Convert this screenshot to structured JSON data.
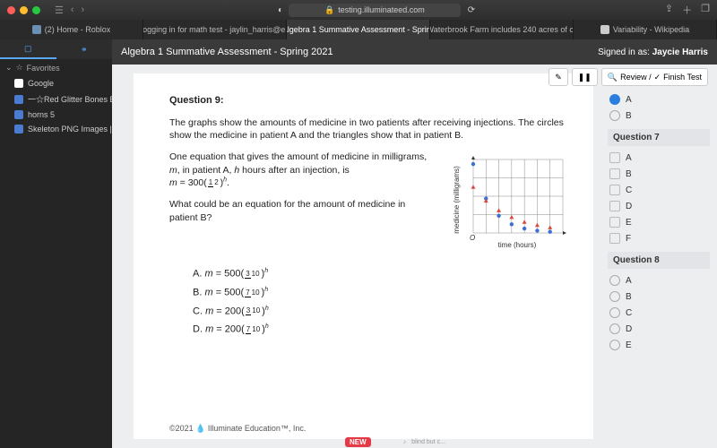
{
  "browser": {
    "url_host": "testing.illuminateed.com",
    "tabs": [
      {
        "label": "(2) Home - Roblox",
        "color": "#6b8fb3"
      },
      {
        "label": "logging in for math test - jaylin_harris@e...",
        "color": "#d44638"
      },
      {
        "label": "Algebra 1 Summative Assessment - Sprin...",
        "color": "#4aa3df",
        "active": true
      },
      {
        "label": "Waterbrook Farm includes 240 acres of c...",
        "color": "#ffffff"
      },
      {
        "label": "Variability - Wikipedia",
        "color": "#cccccc"
      }
    ]
  },
  "sidebar": {
    "favorites_label": "Favorites",
    "items": [
      {
        "label": "Google",
        "color": "#ffffff"
      },
      {
        "label": "一☆Red Glitter Bones Bl...",
        "color": "#4a7bd0"
      },
      {
        "label": "horns 5",
        "color": "#4a7bd0"
      },
      {
        "label": "Skeleton PNG Images | V...",
        "color": "#4a7bd0"
      }
    ]
  },
  "app": {
    "title": "Algebra 1 Summative Assessment - Spring 2021",
    "signed_label": "Signed in as:",
    "user": "Jaycie Harris",
    "toolbar": {
      "review": "Review /",
      "finish": "Finish Test"
    }
  },
  "question": {
    "number_label": "Question 9:",
    "p1": "The graphs show the amounts of medicine in two patients after receiving injections. The circles show the medicine in patient A and the triangles show that in patient B.",
    "p2a": "One equation that gives the amount of medicine in milligrams, ",
    "p2b": ", in patient A, ",
    "p2c": " hours after an injection, is",
    "eqA_pre": "m = 300(",
    "eqA_num": "1",
    "eqA_den": "2",
    "eqA_post": ")",
    "p3": "What could be an equation for the amount of medicine in patient B?",
    "xlabel": "time (hours)",
    "ylabel": "medicine (milligrams)",
    "options": [
      {
        "tag": "A.",
        "pre": "m = 500(",
        "num": "3",
        "den": "10",
        "post": ")"
      },
      {
        "tag": "B.",
        "pre": "m = 500(",
        "num": "7",
        "den": "10",
        "post": ")"
      },
      {
        "tag": "C.",
        "pre": "m = 200(",
        "num": "3",
        "den": "10",
        "post": ")"
      },
      {
        "tag": "D.",
        "pre": "m = 200(",
        "num": "7",
        "den": "10",
        "post": ")"
      }
    ],
    "chart": {
      "circles": [
        [
          0,
          300
        ],
        [
          1,
          150
        ],
        [
          2,
          75
        ],
        [
          3,
          38
        ],
        [
          4,
          19
        ],
        [
          5,
          10
        ],
        [
          6,
          5
        ]
      ],
      "triangles": [
        [
          0,
          200
        ],
        [
          1,
          140
        ],
        [
          2,
          98
        ],
        [
          3,
          69
        ],
        [
          4,
          48
        ],
        [
          5,
          34
        ],
        [
          6,
          24
        ]
      ],
      "xmax": 7,
      "ymax": 320
    }
  },
  "qnav": {
    "top": {
      "selected": "A",
      "other": "B"
    },
    "q7": {
      "label": "Question 7",
      "opts": [
        "A",
        "B",
        "C",
        "D",
        "E",
        "F"
      ]
    },
    "q8": {
      "label": "Question 8",
      "opts": [
        "A",
        "B",
        "C",
        "D",
        "E"
      ]
    }
  },
  "footer": "©2021 💧 Illuminate Education™, Inc.",
  "bottom": {
    "new": "NEW",
    "txt": "blind but c..."
  }
}
